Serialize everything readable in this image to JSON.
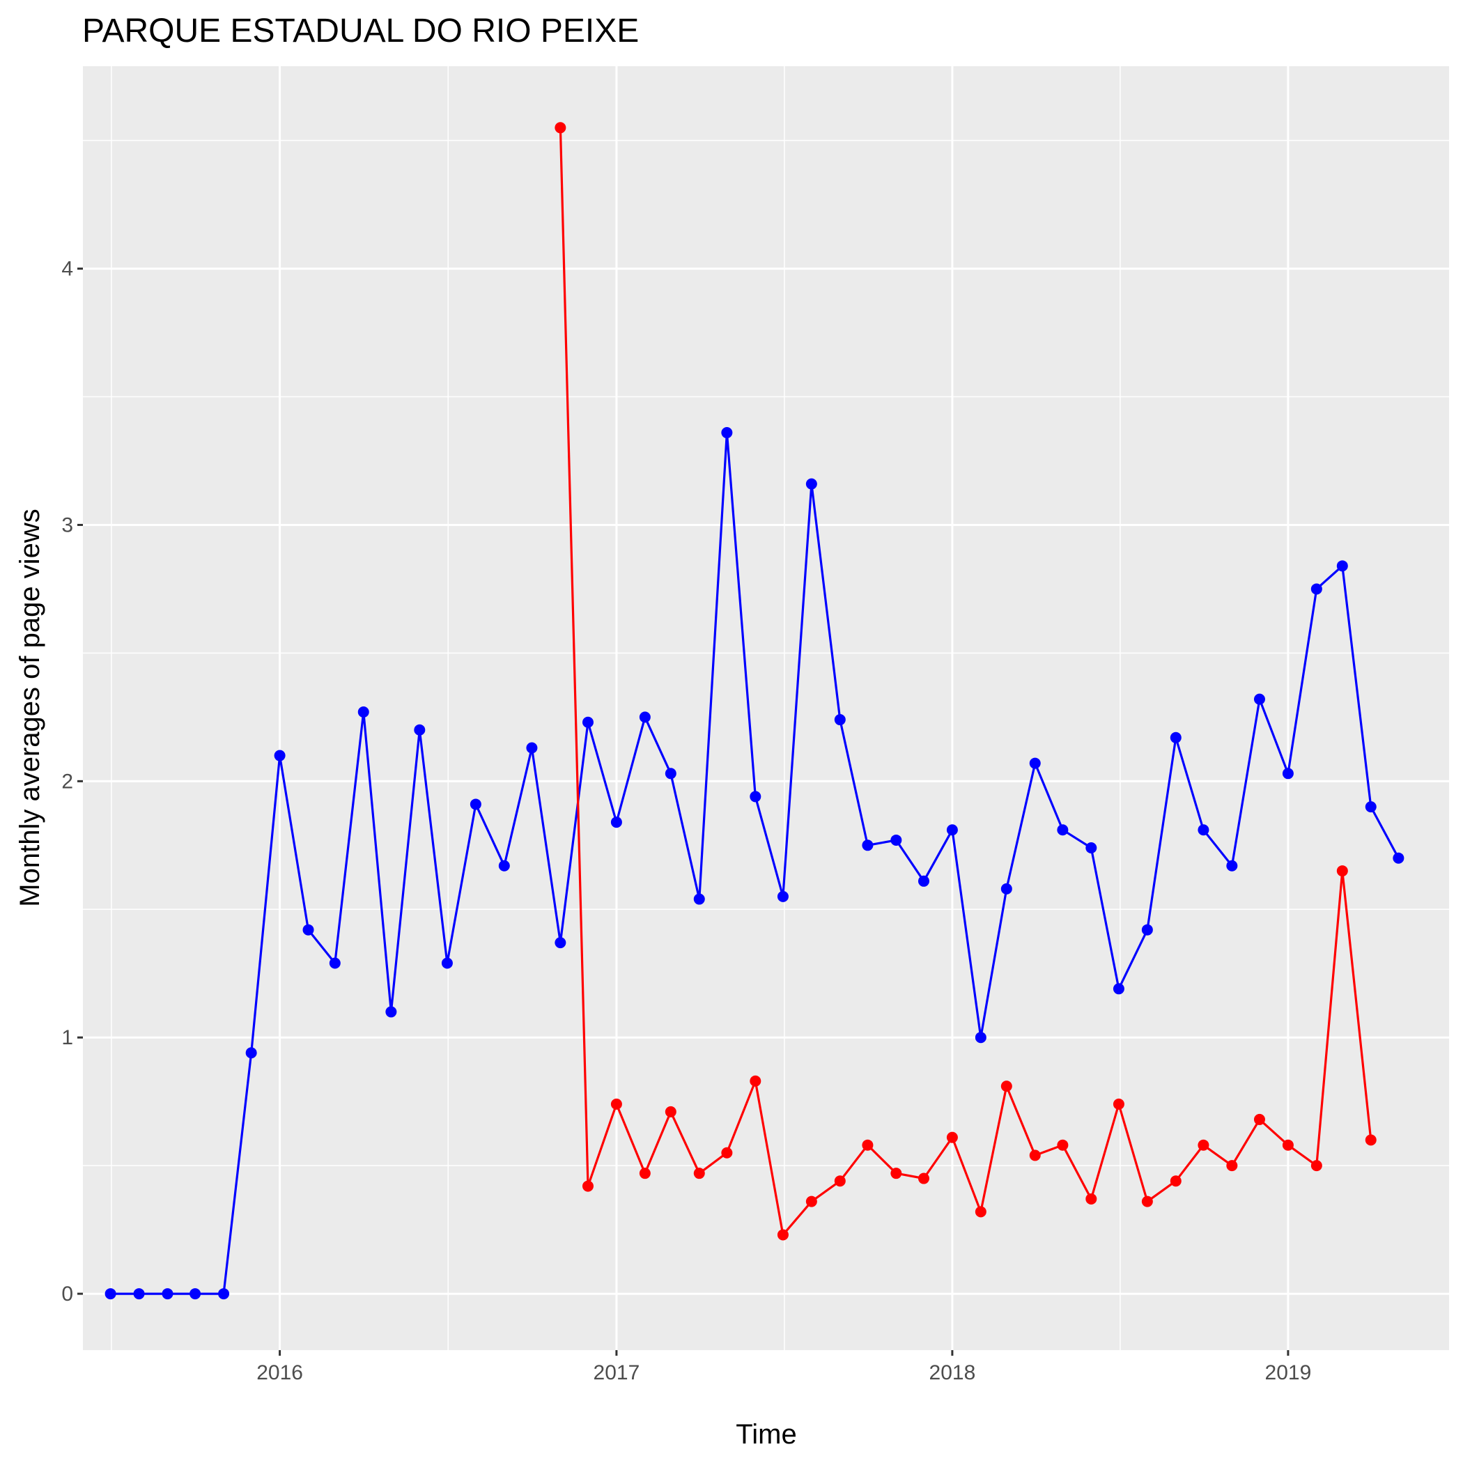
{
  "chart_data": {
    "type": "line",
    "title": "PARQUE ESTADUAL DO RIO PEIXE",
    "xlabel": "Time",
    "ylabel": "Monthly averages of page views",
    "xlim": [
      "2015-06-01",
      "2019-06-25"
    ],
    "ylim": [
      -0.22,
      4.79
    ],
    "x_ticks": [
      {
        "label": "2016",
        "date": "2016-01-01"
      },
      {
        "label": "2017",
        "date": "2017-01-01"
      },
      {
        "label": "2018",
        "date": "2018-01-01"
      },
      {
        "label": "2019",
        "date": "2019-01-01"
      }
    ],
    "y_ticks": [
      0,
      1,
      2,
      3,
      4
    ],
    "grid": true,
    "legend": "none",
    "colors": {
      "panel": "#ebebeb",
      "grid": "#ffffff",
      "tick": "#333333"
    },
    "series": [
      {
        "color": "#0000ff",
        "x": [
          "2015-07-01",
          "2015-08-01",
          "2015-09-01",
          "2015-10-01",
          "2015-11-01",
          "2015-12-01",
          "2016-01-01",
          "2016-02-01",
          "2016-03-01",
          "2016-04-01",
          "2016-05-01",
          "2016-06-01",
          "2016-07-01",
          "2016-08-01",
          "2016-09-01",
          "2016-10-01",
          "2016-11-01",
          "2016-12-01",
          "2017-01-01",
          "2017-02-01",
          "2017-03-01",
          "2017-04-01",
          "2017-05-01",
          "2017-06-01",
          "2017-07-01",
          "2017-08-01",
          "2017-09-01",
          "2017-10-01",
          "2017-11-01",
          "2017-12-01",
          "2018-01-01",
          "2018-02-01",
          "2018-03-01",
          "2018-04-01",
          "2018-05-01",
          "2018-06-01",
          "2018-07-01",
          "2018-08-01",
          "2018-09-01",
          "2018-10-01",
          "2018-11-01",
          "2018-12-01",
          "2019-01-01",
          "2019-02-01",
          "2019-03-01",
          "2019-04-01",
          "2019-05-01"
        ],
        "y": [
          0,
          0,
          0,
          0,
          0,
          0.94,
          2.1,
          1.42,
          1.29,
          2.27,
          1.1,
          2.2,
          1.29,
          1.91,
          1.67,
          2.13,
          1.37,
          2.23,
          1.84,
          2.25,
          2.03,
          1.54,
          3.36,
          1.94,
          1.55,
          3.16,
          2.24,
          1.75,
          1.77,
          1.61,
          1.81,
          1.0,
          1.58,
          2.07,
          1.81,
          1.74,
          1.19,
          1.42,
          2.17,
          1.81,
          1.67,
          2.32,
          2.03,
          2.75,
          2.84,
          1.9,
          1.7
        ]
      },
      {
        "color": "#ff0000",
        "x": [
          "2016-11-01",
          "2016-12-01",
          "2017-01-01",
          "2017-02-01",
          "2017-03-01",
          "2017-04-01",
          "2017-05-01",
          "2017-06-01",
          "2017-07-01",
          "2017-08-01",
          "2017-09-01",
          "2017-10-01",
          "2017-11-01",
          "2017-12-01",
          "2018-01-01",
          "2018-02-01",
          "2018-03-01",
          "2018-04-01",
          "2018-05-01",
          "2018-06-01",
          "2018-07-01",
          "2018-08-01",
          "2018-09-01",
          "2018-10-01",
          "2018-11-01",
          "2018-12-01",
          "2019-01-01",
          "2019-02-01",
          "2019-03-01",
          "2019-04-01"
        ],
        "y": [
          4.55,
          0.42,
          0.74,
          0.47,
          0.71,
          0.47,
          0.55,
          0.83,
          0.23,
          0.36,
          0.44,
          0.58,
          0.47,
          0.45,
          0.61,
          0.32,
          0.81,
          0.54,
          0.58,
          0.37,
          0.74,
          0.36,
          0.44,
          0.58,
          0.5,
          0.68,
          0.58,
          0.5,
          1.65,
          0.6
        ]
      }
    ]
  }
}
